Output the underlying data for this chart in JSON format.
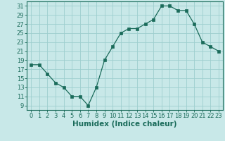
{
  "x": [
    0,
    1,
    2,
    3,
    4,
    5,
    6,
    7,
    8,
    9,
    10,
    11,
    12,
    13,
    14,
    15,
    16,
    17,
    18,
    19,
    20,
    21,
    22,
    23
  ],
  "y": [
    18,
    18,
    16,
    14,
    13,
    11,
    11,
    9,
    13,
    19,
    22,
    25,
    26,
    26,
    27,
    28,
    31,
    31,
    30,
    30,
    27,
    23,
    22,
    21
  ],
  "line_color": "#1a6b5a",
  "marker_color": "#1a6b5a",
  "bg_color": "#c8e8e8",
  "grid_color": "#9ecece",
  "xlabel": "Humidex (Indice chaleur)",
  "xlim": [
    -0.5,
    23.5
  ],
  "ylim": [
    8,
    32
  ],
  "yticks": [
    9,
    11,
    13,
    15,
    17,
    19,
    21,
    23,
    25,
    27,
    29,
    31
  ],
  "xticks": [
    0,
    1,
    2,
    3,
    4,
    5,
    6,
    7,
    8,
    9,
    10,
    11,
    12,
    13,
    14,
    15,
    16,
    17,
    18,
    19,
    20,
    21,
    22,
    23
  ],
  "title_color": "#1a6b5a",
  "label_fontsize": 7.5,
  "tick_fontsize": 6.0
}
